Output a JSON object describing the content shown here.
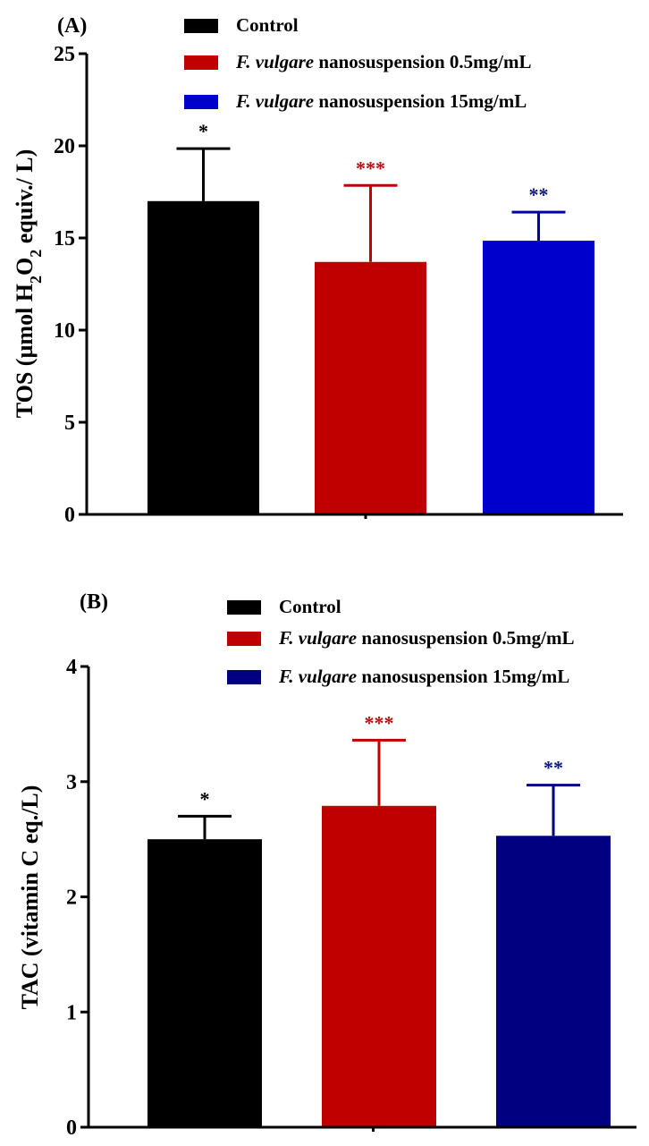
{
  "chart_data": [
    {
      "type": "bar",
      "panel_label": "(A)",
      "ylabel_parts": [
        "TOS (µmol H",
        "2",
        "O",
        "2",
        " equiv./ L)"
      ],
      "yticks": [
        "0",
        "5",
        "10",
        "15",
        "20",
        "25"
      ],
      "ylim": [
        0,
        25
      ],
      "legend_position": "top-right",
      "series": [
        {
          "name": "Control",
          "name_italic": "",
          "name_rest": "Control",
          "value": 17.0,
          "error": 2.85,
          "color": "#000000",
          "sig": "*",
          "sig_color": "#000000"
        },
        {
          "name": "F. vulgare nanosuspension 0.5mg/mL",
          "name_italic": "F. vulgare",
          "name_rest": " nanosuspension 0.5mg/mL",
          "value": 13.7,
          "error": 4.15,
          "color": "#c00000",
          "sig": "***",
          "sig_color": "#b01010"
        },
        {
          "name": "F. vulgare nanosuspension 15mg/mL",
          "name_italic": "F. vulgare",
          "name_rest": " nanosuspension 15mg/mL",
          "value": 14.85,
          "error": 1.55,
          "color": "#0000cc",
          "sig": "**",
          "sig_color": "#0a1a7a"
        }
      ]
    },
    {
      "type": "bar",
      "panel_label": "(B)",
      "ylabel_parts": [
        "TAC (vitamin C eq./L)"
      ],
      "yticks": [
        "0",
        "1",
        "2",
        "3",
        "4"
      ],
      "ylim": [
        0,
        4
      ],
      "legend_position": "top-right",
      "series": [
        {
          "name": "Control",
          "name_italic": "",
          "name_rest": "Control",
          "value": 2.5,
          "error": 0.2,
          "color": "#000000",
          "sig": "*",
          "sig_color": "#000000"
        },
        {
          "name": "F. vulgare nanosuspension 0.5mg/mL",
          "name_italic": "F. vulgare",
          "name_rest": " nanosuspension 0.5mg/mL",
          "value": 2.79,
          "error": 0.57,
          "color": "#c00000",
          "sig": "***",
          "sig_color": "#b01010"
        },
        {
          "name": "F. vulgare nanosuspension 15mg/mL",
          "name_italic": "F. vulgare",
          "name_rest": " nanosuspension 15mg/mL",
          "value": 2.53,
          "error": 0.44,
          "color": "#000080",
          "sig": "**",
          "sig_color": "#0a1a7a"
        }
      ]
    }
  ]
}
